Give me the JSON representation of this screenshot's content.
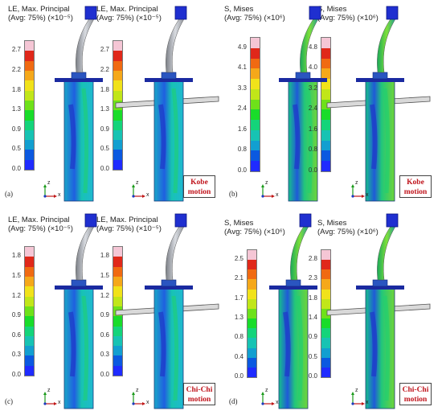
{
  "colors": {
    "scale": [
      "#1f2bff",
      "#0b59e0",
      "#129fd0",
      "#17c3b3",
      "#14d47a",
      "#19dc2a",
      "#6ee11a",
      "#c1e619",
      "#f1e21a",
      "#f5a81a",
      "#f06a12",
      "#e0281a"
    ],
    "top": "#f5c6d5",
    "motion_text": "#c0141c"
  },
  "panels": [
    {
      "label": "(a)",
      "left": {
        "title1": "LE, Max. Principal",
        "title2": "(Avg: 75%) (×10⁻⁵)",
        "ticks": [
          "2.7",
          "2.2",
          "1.8",
          "1.3",
          "0.9",
          "0.5",
          "0.0"
        ]
      },
      "right": {
        "title1": "LE, Max. Principal",
        "title2": "(Avg: 75%) (×10⁻⁵)",
        "ticks": [
          "2.7",
          "2.2",
          "1.8",
          "1.3",
          "0.9",
          "0.5",
          "0.0"
        ]
      },
      "motion": [
        "Kobe",
        "motion"
      ]
    },
    {
      "label": "(b)",
      "left": {
        "title1": "S, Mises",
        "title2": "(Avg: 75%) (×10⁶)",
        "ticks": [
          "4.9",
          "4.1",
          "3.3",
          "2.4",
          "1.6",
          "0.8",
          "0.0"
        ]
      },
      "right": {
        "title1": "S, Mises",
        "title2": "(Avg: 75%) (×10⁶)",
        "ticks": [
          "4.8",
          "4.0",
          "3.2",
          "2.4",
          "1.6",
          "0.8",
          "0.0"
        ]
      },
      "motion": [
        "Kobe",
        "motion"
      ]
    },
    {
      "label": "(c)",
      "left": {
        "title1": "LE, Max. Principal",
        "title2": "(Avg: 75%) (×10⁻⁵)",
        "ticks": [
          "1.8",
          "1.5",
          "1.2",
          "0.9",
          "0.6",
          "0.3",
          "0.0"
        ]
      },
      "right": {
        "title1": "LE, Max. Principal",
        "title2": "(Avg: 75%) (×10⁻⁵)",
        "ticks": [
          "1.8",
          "1.5",
          "1.2",
          "0.9",
          "0.6",
          "0.3",
          "0.0"
        ]
      },
      "motion": [
        "Chi-Chi",
        "motion"
      ]
    },
    {
      "label": "(d)",
      "left": {
        "title1": "S, Mises",
        "title2": "(Avg: 75%) (×10⁶)",
        "ticks": [
          "2.5",
          "2.1",
          "1.7",
          "1.3",
          "0.8",
          "0.4",
          "0.0"
        ]
      },
      "right": {
        "title1": "S, Mises",
        "title2": "(Avg: 75%) (×10⁶)",
        "ticks": [
          "2.8",
          "2.3",
          "1.8",
          "1.4",
          "0.9",
          "0.5",
          "0.0"
        ]
      },
      "motion": [
        "Chi-Chi",
        "motion"
      ]
    }
  ],
  "axes": {
    "z": "z",
    "x": "x"
  }
}
